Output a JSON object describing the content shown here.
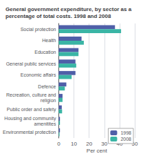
{
  "chart_data": {
    "type": "bar",
    "orientation": "horizontal",
    "title": "General government expenditure, by sector as a\npercentage of total costs. 1998 and 2008",
    "categories": [
      "Social protection",
      "Health",
      "Education",
      "General public services",
      "Economic affairs",
      "Defence",
      "Recreation, culture and\nreligion",
      "Public order and safety",
      "Housing and community\namenitites",
      "Environmental protection"
    ],
    "series": [
      {
        "name": "1998",
        "color": "#4f5fa8",
        "values": [
          37,
          15,
          13,
          11,
          11,
          5,
          2.5,
          2,
          0.8,
          0.8
        ]
      },
      {
        "name": "2008",
        "color": "#3ab5a5",
        "values": [
          41,
          16.5,
          13,
          11.5,
          8.5,
          4,
          2.5,
          2.2,
          0.8,
          0.5
        ]
      }
    ],
    "xlabel": "Per cent",
    "xlim": [
      0,
      50
    ],
    "xticks": [
      0,
      10,
      20,
      30,
      40,
      50
    ],
    "grid": true,
    "legend": "lower right"
  }
}
